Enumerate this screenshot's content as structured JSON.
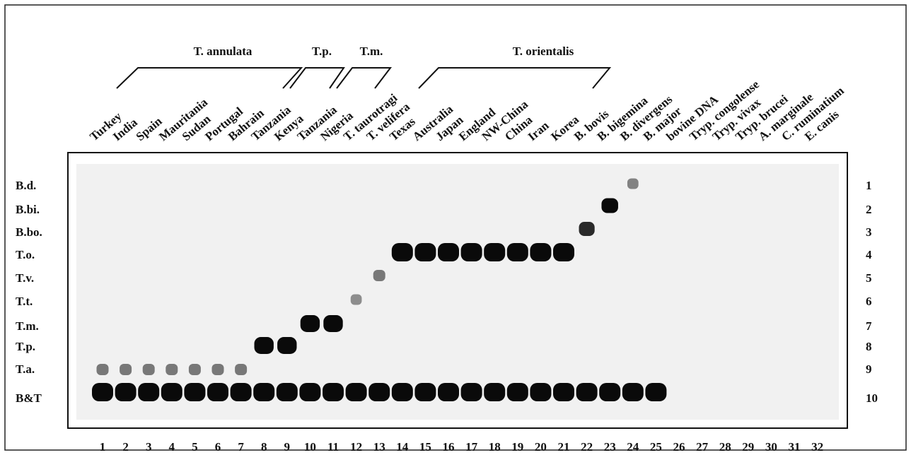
{
  "figure": {
    "groups": [
      "T. annulata",
      "T.p.",
      "T.m.",
      "T. orientalis"
    ],
    "samples": [
      "Turkey",
      "India",
      "Spain",
      "Mauritania",
      "Sudan",
      "Portugal",
      "Bahrain",
      "Tanzania",
      "Kenya",
      "Tanzania",
      "Nigeria",
      "T. taurotragi",
      "T. velifera",
      "Texas",
      "Australia",
      "Japan",
      "England",
      "NW-China",
      "China",
      "Iran",
      "Korea",
      "B. bovis",
      "B. bigemina",
      "B. divergens",
      "B. major",
      "bovine DNA",
      "Tryp. congolense",
      "Tryp. vivax",
      "Tryp. brucei",
      "A. marginale",
      "C. ruminatium",
      "E. canis"
    ],
    "row_labels": [
      "B.d.",
      "B.bi.",
      "B.bo.",
      "T.o.",
      "T.v.",
      "T.t.",
      "T.m.",
      "T.p.",
      "T.a.",
      "B&T"
    ],
    "row_numbers": [
      1,
      2,
      3,
      4,
      5,
      6,
      7,
      8,
      9,
      10
    ],
    "lanes": [
      1,
      2,
      3,
      4,
      5,
      6,
      7,
      8,
      9,
      10,
      11,
      12,
      13,
      14,
      15,
      16,
      17,
      18,
      19,
      20,
      21,
      22,
      23,
      24,
      25,
      26,
      27,
      28,
      29,
      30,
      31,
      32
    ]
  }
}
